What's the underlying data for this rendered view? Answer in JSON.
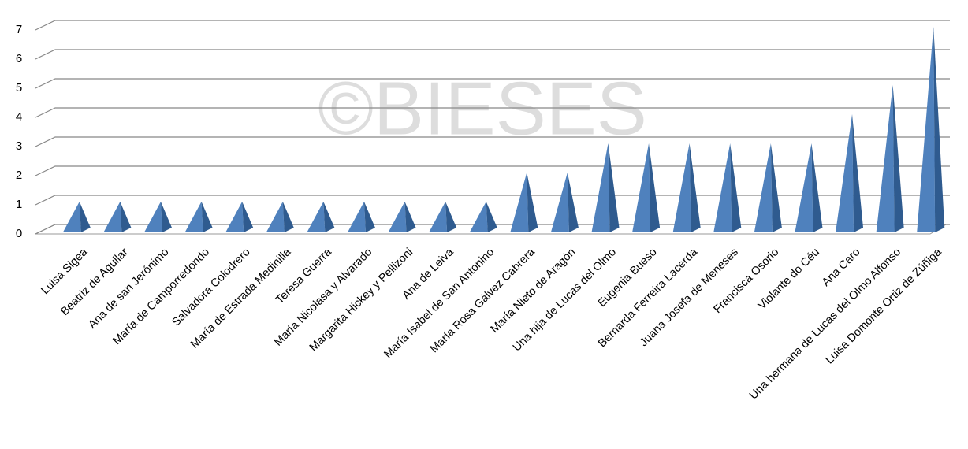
{
  "chart_data": {
    "type": "pyramid",
    "watermark": "©BIESES",
    "categories": [
      "Luisa Sigea",
      "Beatriz de Aguilar",
      "Ana de san Jerónimo",
      "María de Camporredondo",
      "Salvadora Colodrero",
      "María  de Estrada Medinilla",
      "Teresa Guerra",
      "María Nicolasa y Alvarado",
      "Margarita Hickey y Pellizoni",
      "Ana de Leiva",
      "María Isabel de San Antonino",
      "María Rosa Gálvez Cabrera",
      "María Nieto de Aragón",
      "Una hija de Lucas del Olmo",
      "Eugenia Bueso",
      "Bernarda Ferreira Lacerda",
      "Juana Josefa de Meneses",
      "Francisca Osorio",
      "Violante do Céu",
      "Ana Caro",
      "Una hermana de Lucas del Olmo Alfonso",
      "Luisa Domonte Ortiz de Zúñiga"
    ],
    "values": [
      1,
      1,
      1,
      1,
      1,
      1,
      1,
      1,
      1,
      1,
      1,
      2,
      2,
      3,
      3,
      3,
      3,
      3,
      3,
      4,
      5,
      7
    ],
    "color": "#4f81bd",
    "ylim": [
      0,
      7
    ],
    "yticks": [
      0,
      1,
      2,
      3,
      4,
      5,
      6,
      7
    ],
    "grid": true
  }
}
